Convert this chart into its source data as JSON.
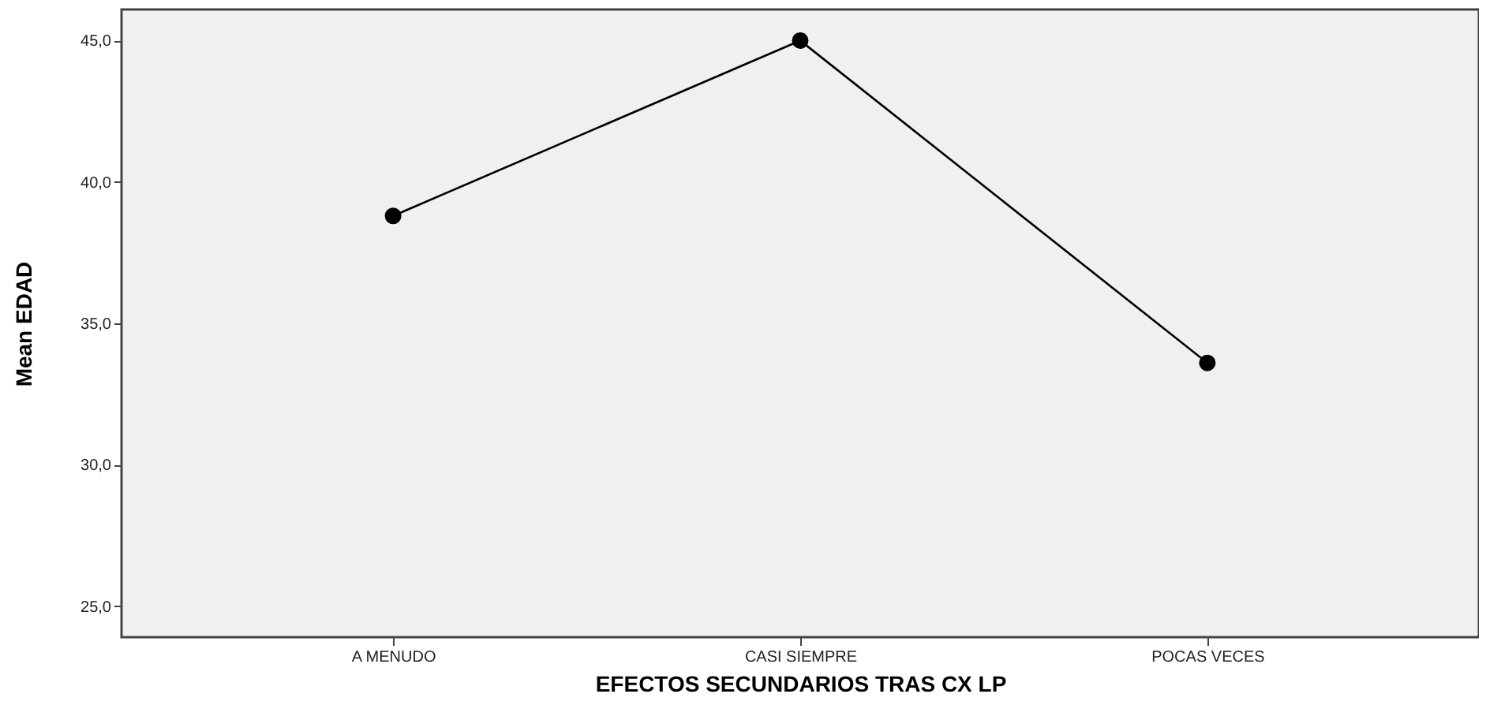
{
  "chart_data": {
    "type": "line",
    "xlabel": "EFECTOS SECUNDARIOS TRAS CX LP",
    "ylabel": "Mean EDAD",
    "categories": [
      "A MENUDO",
      "CASI SIEMPRE",
      "POCAS VECES"
    ],
    "series": [
      {
        "color": "#000000",
        "values": [
          38.8,
          45.0,
          33.6
        ]
      }
    ],
    "ylim": [
      23.9,
      46.1
    ],
    "yticks": [
      {
        "value": 25,
        "label": "25,0"
      },
      {
        "value": 30,
        "label": "30,0"
      },
      {
        "value": 35,
        "label": "35,0"
      },
      {
        "value": 40,
        "label": "40,0"
      },
      {
        "value": 45,
        "label": "45,0"
      }
    ],
    "grid": false,
    "legend": false,
    "marker": "circle",
    "line_style": "solid"
  }
}
